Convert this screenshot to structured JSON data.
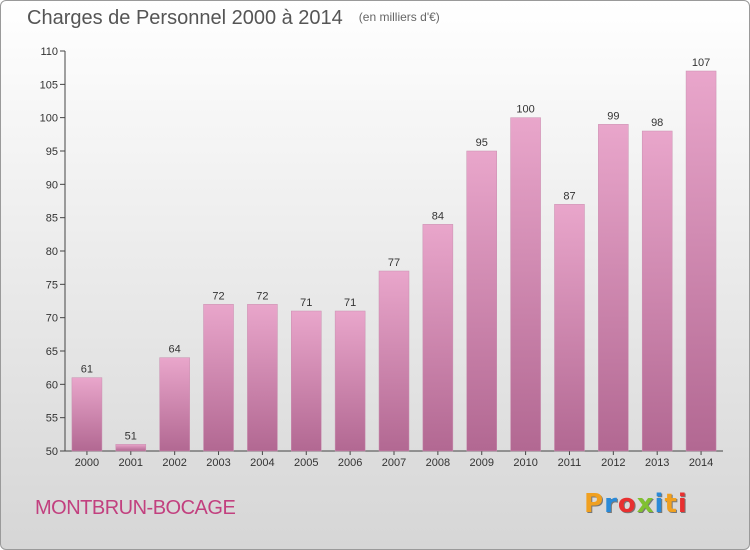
{
  "header": {
    "title": "Charges de Personnel 2000 à 2014",
    "subtitle": "(en milliers d'€)"
  },
  "footer": {
    "town": "MONTBRUN-BOCAGE",
    "logo_letters": [
      "P",
      "r",
      "o",
      "x",
      "i",
      "t",
      "i"
    ],
    "logo_colors": [
      "#f0a020",
      "#2a8ad8",
      "#e83030",
      "#80c030",
      "#2a8ad8",
      "#f0a020",
      "#e83030"
    ]
  },
  "chart_data": {
    "type": "bar",
    "title": "Charges de Personnel 2000 à 2014",
    "subtitle": "(en milliers d'€)",
    "categories": [
      "2000",
      "2001",
      "2002",
      "2003",
      "2004",
      "2005",
      "2006",
      "2007",
      "2008",
      "2009",
      "2010",
      "2011",
      "2012",
      "2013",
      "2014"
    ],
    "values": [
      61,
      51,
      64,
      72,
      72,
      71,
      71,
      77,
      84,
      95,
      100,
      87,
      99,
      98,
      107
    ],
    "ylim": [
      50,
      110
    ],
    "yticks": [
      50,
      55,
      60,
      65,
      70,
      75,
      80,
      85,
      90,
      95,
      100,
      105,
      110
    ],
    "grid": false,
    "bar_color_top": "#e9a6cb",
    "bar_color_bottom": "#b26892"
  }
}
